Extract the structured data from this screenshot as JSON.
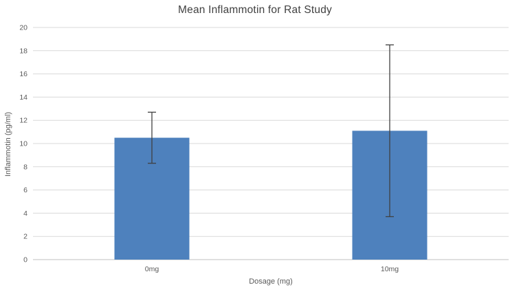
{
  "chart_data": {
    "type": "bar",
    "title": "Mean Inflammotin for Rat Study",
    "xlabel": "Dosage (mg)",
    "ylabel": "Inflammotin (pg/ml)",
    "categories": [
      "0mg",
      "10mg"
    ],
    "values": [
      10.5,
      11.1
    ],
    "error_low": [
      8.3,
      3.7
    ],
    "error_high": [
      12.7,
      18.5
    ],
    "ylim": [
      0,
      20
    ],
    "ytick_step": 2,
    "yticks": [
      0,
      2,
      4,
      6,
      8,
      10,
      12,
      14,
      16,
      18,
      20
    ],
    "grid": true,
    "legend_position": "none",
    "colors": {
      "bar_fill": "#4E81BD",
      "gridline": "#D9D9D9",
      "axis_line": "#BFBFBF",
      "error_bar": "#404040",
      "tick_label": "#595959",
      "title": "#404040",
      "background": "#FFFFFF"
    }
  }
}
